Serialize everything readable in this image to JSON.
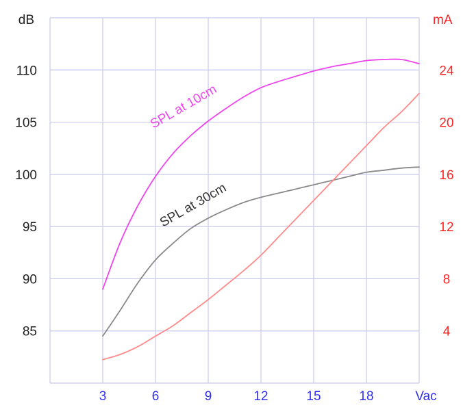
{
  "chart_data": {
    "type": "line",
    "xlabel": "Vac",
    "ylabel_left": "dB",
    "ylabel_right": "mA",
    "x_ticks": [
      "3",
      "6",
      "9",
      "12",
      "15",
      "18"
    ],
    "x_range": [
      0,
      21
    ],
    "y_left_ticks": [
      "85",
      "90",
      "95",
      "100",
      "105",
      "110"
    ],
    "y_left_range": [
      80,
      115
    ],
    "y_right_ticks": [
      "4",
      "8",
      "12",
      "16",
      "20",
      "24"
    ],
    "y_right_range": [
      0,
      28
    ],
    "grid": true,
    "colors": {
      "grid": "#c8c8ec",
      "x_ticks": "#2f2ff2",
      "left_axis": "#222222",
      "right_axis": "#ff2222",
      "spl_10cm": "#ee44ee",
      "spl_30cm": "#8a8a8a",
      "current": "#ff8a8a"
    },
    "series": [
      {
        "name": "SPL at 10cm",
        "axis": "left",
        "x": [
          3,
          4,
          5,
          6,
          7,
          8,
          9,
          10,
          11,
          12,
          13,
          14,
          15,
          16,
          17,
          18,
          19,
          20,
          21
        ],
        "y": [
          89,
          93.5,
          97,
          99.8,
          102,
          103.7,
          105.1,
          106.3,
          107.4,
          108.3,
          108.9,
          109.4,
          109.9,
          110.3,
          110.6,
          110.9,
          111,
          111,
          110.6
        ]
      },
      {
        "name": "SPL at 30cm",
        "axis": "left",
        "x": [
          3,
          4,
          5,
          6,
          7,
          8,
          9,
          10,
          11,
          12,
          13,
          14,
          15,
          16,
          17,
          18,
          19,
          20,
          21
        ],
        "y": [
          84.5,
          87,
          89.6,
          91.8,
          93.4,
          94.8,
          95.8,
          96.6,
          97.3,
          97.8,
          98.2,
          98.6,
          99,
          99.4,
          99.8,
          100.2,
          100.4,
          100.6,
          100.7
        ]
      },
      {
        "name": "",
        "axis": "right",
        "x": [
          3,
          4,
          5,
          6,
          7,
          8,
          9,
          10,
          11,
          12,
          13,
          14,
          15,
          16,
          17,
          18,
          19,
          20,
          21
        ],
        "y": [
          1.8,
          2.2,
          2.8,
          3.6,
          4.4,
          5.4,
          6.4,
          7.5,
          8.6,
          9.8,
          11.2,
          12.6,
          14.0,
          15.4,
          16.8,
          18.2,
          19.6,
          20.8,
          22.2
        ]
      }
    ]
  }
}
